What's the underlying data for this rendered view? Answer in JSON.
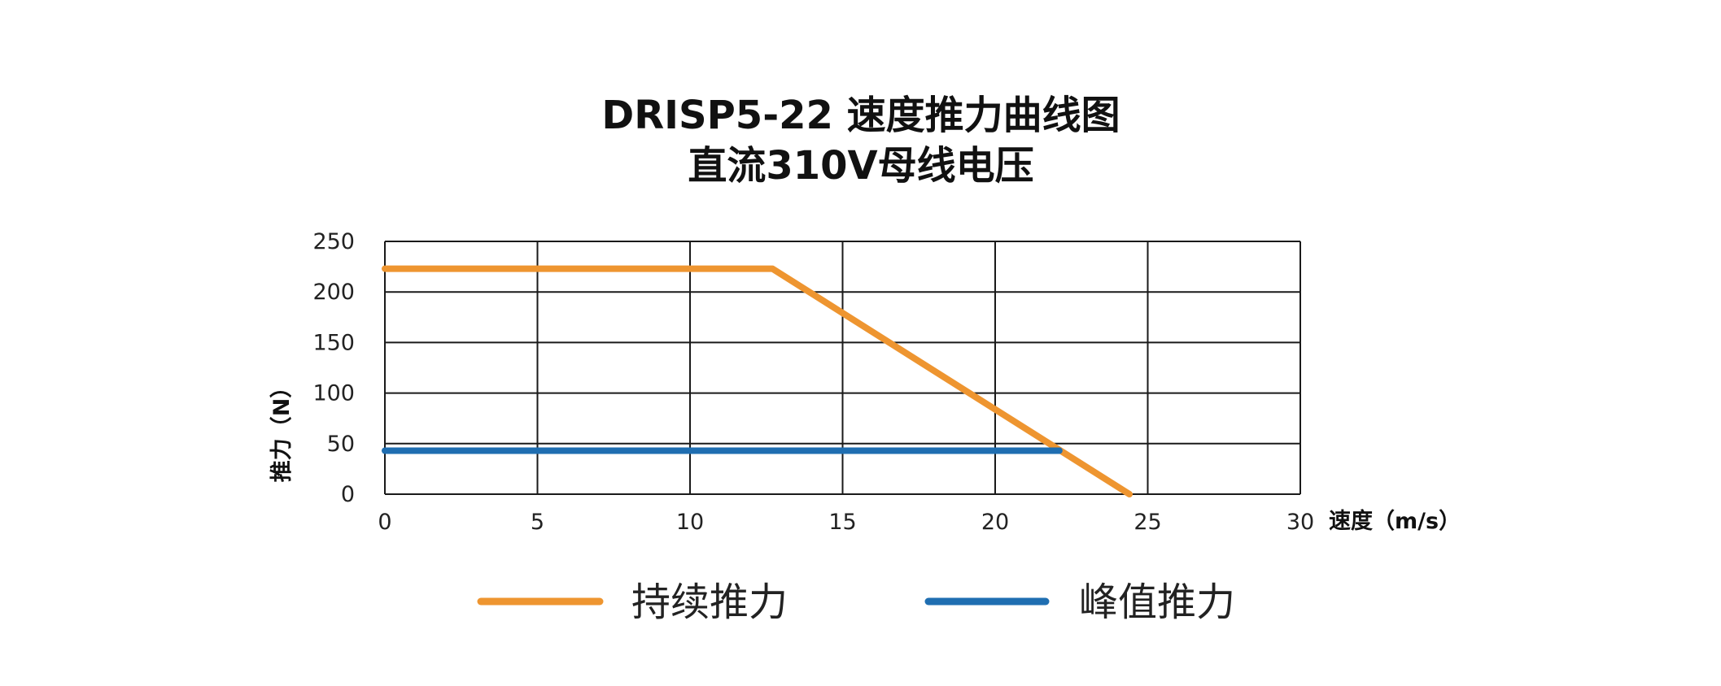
{
  "chart_data": {
    "type": "line",
    "title": "DRISP5-22 速度推力曲线图",
    "subtitle": "直流310V母线电压",
    "xlabel": "速度（m/s）",
    "ylabel": "推力（N）",
    "xlim": [
      0,
      30
    ],
    "ylim": [
      0,
      250
    ],
    "x_ticks": [
      "0",
      "5",
      "10",
      "15",
      "20",
      "25",
      "30"
    ],
    "y_ticks": [
      "0",
      "50",
      "100",
      "150",
      "200",
      "250"
    ],
    "grid": true,
    "legend_position": "bottom",
    "series": [
      {
        "name": "持续推力",
        "color": "#EE9530",
        "points": [
          [
            0,
            223
          ],
          [
            12.7,
            223
          ],
          [
            24.4,
            0
          ]
        ]
      },
      {
        "name": "峰值推力",
        "color": "#1F6EB1",
        "points": [
          [
            0,
            43
          ],
          [
            22.1,
            43
          ]
        ]
      }
    ]
  }
}
